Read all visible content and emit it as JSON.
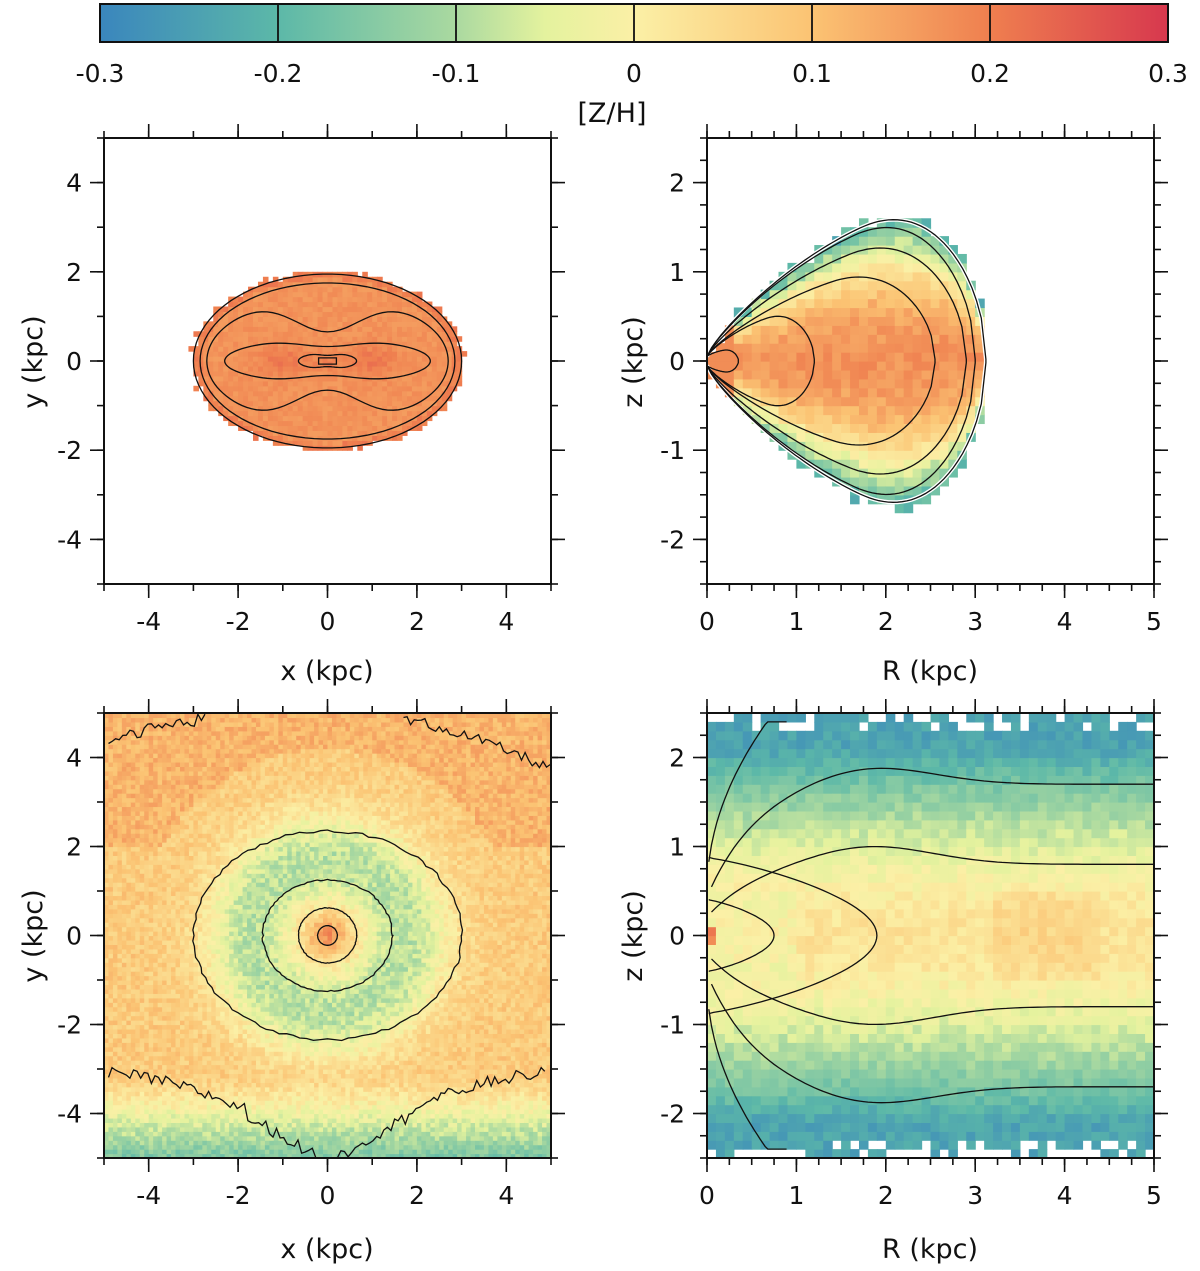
{
  "colorbar": {
    "label": "[Z/H]",
    "min": -0.3,
    "max": 0.3,
    "ticks": [
      "-0.3",
      "-0.2",
      "-0.1",
      "0",
      "0.1",
      "0.2",
      "0.3"
    ],
    "stops": [
      {
        "v": -0.3,
        "c": "#3a86bd"
      },
      {
        "v": -0.2,
        "c": "#5cb8a8"
      },
      {
        "v": -0.1,
        "c": "#aad9a0"
      },
      {
        "v": -0.05,
        "c": "#e4f29e"
      },
      {
        "v": 0.0,
        "c": "#fbf0a6"
      },
      {
        "v": 0.1,
        "c": "#fbc373"
      },
      {
        "v": 0.2,
        "c": "#ef7f4f"
      },
      {
        "v": 0.3,
        "c": "#d7384e"
      }
    ]
  },
  "chart_data": [
    {
      "id": "top-left",
      "type": "heatmap",
      "description": "face-on metallicity map of the bar (top)",
      "xlabel": "x (kpc)",
      "ylabel": "y (kpc)",
      "xlim": [
        -5,
        5
      ],
      "ylim": [
        -5,
        5
      ],
      "xticks": [
        "-4",
        "-2",
        "0",
        "2",
        "4"
      ],
      "yticks": [
        "-4",
        "-2",
        "0",
        "2",
        "4"
      ],
      "region": {
        "shape": "ellipse",
        "cx": 0,
        "cy": 0,
        "rx": 3.05,
        "ry": 2.0
      },
      "base_value": 0.17,
      "blobs": [
        {
          "x": -1.0,
          "y": 0,
          "sx": 0.55,
          "sy": 0.35,
          "v": 0.04
        },
        {
          "x": 1.0,
          "y": 0,
          "sx": 0.55,
          "sy": 0.35,
          "v": 0.04
        },
        {
          "x": 0,
          "y": 0,
          "sx": 0.3,
          "sy": 0.2,
          "v": 0.03
        }
      ],
      "contours": [
        {
          "type": "ellipse",
          "rx": 3.0,
          "ry": 1.95
        },
        {
          "type": "ellipse",
          "rx": 2.85,
          "ry": 1.75
        },
        {
          "type": "peanut",
          "a": 2.7,
          "b": 1.45,
          "w": 0.55
        },
        {
          "type": "peanut",
          "a": 2.3,
          "b": 0.5,
          "w": 0.35
        },
        {
          "type": "peanut",
          "a": 0.65,
          "b": 0.18,
          "w": 0.3
        },
        {
          "type": "rect",
          "a": 0.2,
          "b": 0.07
        }
      ]
    },
    {
      "id": "top-right",
      "type": "heatmap",
      "description": "edge-on (R, z) metallicity map of the bar (top)",
      "xlabel": "R (kpc)",
      "ylabel": "z (kpc)",
      "xlim": [
        0,
        5
      ],
      "ylim": [
        -2.5,
        2.5
      ],
      "xticks": [
        "0",
        "1",
        "2",
        "3",
        "4",
        "5"
      ],
      "yticks": [
        "-2",
        "-1",
        "0",
        "1",
        "2"
      ],
      "region": {
        "shape": "shield",
        "rmax": 3.15,
        "zmax": 1.85
      },
      "core_value": 0.17,
      "edge_value": -0.22,
      "contours": [
        {
          "type": "shield",
          "zmax": 1.78,
          "rmax": 3.12,
          "white": true
        },
        {
          "type": "shield",
          "zmax": 1.68,
          "rmax": 3.0
        },
        {
          "type": "shield",
          "zmax": 1.42,
          "rmax": 2.9
        },
        {
          "type": "shield",
          "zmax": 1.05,
          "rmax": 2.55
        },
        {
          "type": "shield",
          "zmax": 0.55,
          "rmax": 1.2
        },
        {
          "type": "shield",
          "zmax": 0.12,
          "rmax": 0.35
        }
      ]
    },
    {
      "id": "bottom-left",
      "type": "heatmap",
      "description": "face-on metallicity map of the disc (bottom)",
      "xlabel": "x (kpc)",
      "ylabel": "y (kpc)",
      "xlim": [
        -5,
        5
      ],
      "ylim": [
        -5,
        5
      ],
      "xticks": [
        "-4",
        "-2",
        "0",
        "2",
        "4"
      ],
      "yticks": [
        "-4",
        "-2",
        "0",
        "2",
        "4"
      ],
      "ring": {
        "r": 1.7,
        "v": -0.09
      },
      "center_value": 0.05,
      "outer_value": 0.08,
      "bottom_value": -0.16,
      "contours": [
        {
          "type": "ellipse",
          "rx": 3.0,
          "ry": 2.35
        },
        {
          "type": "ellipse",
          "rx": 1.45,
          "ry": 1.25
        },
        {
          "type": "ellipse",
          "rx": 0.65,
          "ry": 0.62
        },
        {
          "type": "ellipse",
          "rx": 0.22,
          "ry": 0.22
        },
        {
          "type": "corner",
          "corner": "top-left"
        },
        {
          "type": "corner",
          "corner": "top-right"
        },
        {
          "type": "corner",
          "corner": "bottom"
        }
      ]
    },
    {
      "id": "bottom-right",
      "type": "heatmap",
      "description": "edge-on (R, z) metallicity map of the disc (bottom)",
      "xlabel": "R (kpc)",
      "ylabel": "z (kpc)",
      "xlim": [
        0,
        5
      ],
      "ylim": [
        -2.5,
        2.5
      ],
      "xticks": [
        "0",
        "1",
        "2",
        "3",
        "4",
        "5"
      ],
      "yticks": [
        "-2",
        "-1",
        "0",
        "1",
        "2"
      ],
      "midplane_value": 0.03,
      "high_value": -0.24,
      "contours": [
        {
          "type": "flare",
          "z": 1.7
        },
        {
          "type": "flare",
          "z": 0.8
        },
        {
          "type": "lens",
          "rmax": 1.9,
          "zmax": 0.65
        },
        {
          "type": "lens",
          "rmax": 0.75,
          "zmax": 0.3
        },
        {
          "type": "fan",
          "z": 2.4
        }
      ]
    }
  ]
}
